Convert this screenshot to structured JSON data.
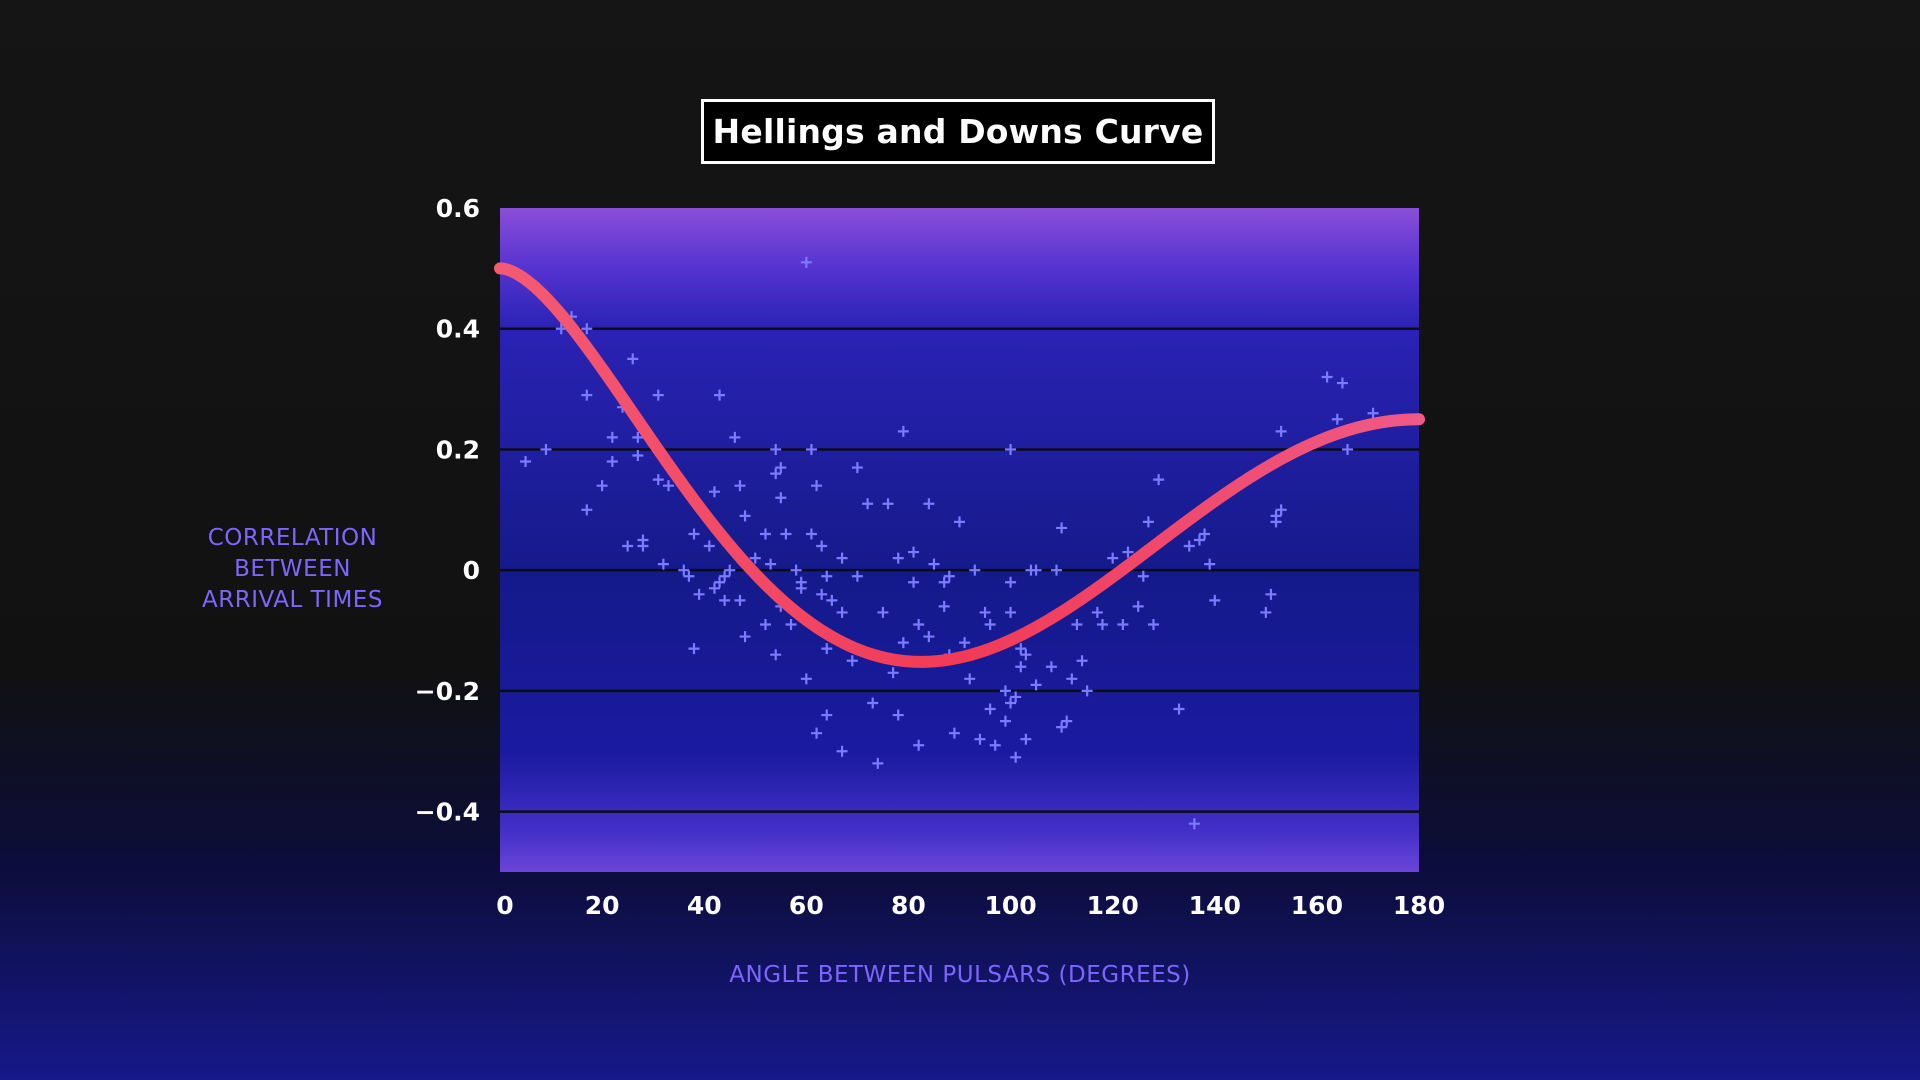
{
  "chart_data": {
    "type": "scatter",
    "title": "Hellings and Downs Curve",
    "xlabel": "ANGLE BETWEEN PULSARS (DEGREES)",
    "ylabel_lines": [
      "CORRELATION",
      "BETWEEN",
      "ARRIVAL TIMES"
    ],
    "xlim": [
      0,
      180
    ],
    "ylim": [
      -0.5,
      0.6
    ],
    "x_ticks": [
      0,
      20,
      40,
      60,
      80,
      100,
      120,
      140,
      160,
      180
    ],
    "x_tick_labels": [
      "0",
      "20",
      "40",
      "60",
      "80",
      "100",
      "120",
      "140",
      "160",
      "180"
    ],
    "y_ticks": [
      0.6,
      0.4,
      0.2,
      0,
      -0.2,
      -0.4
    ],
    "y_tick_labels": [
      "0.6",
      "0.4",
      "0.2",
      "0",
      "−0.2",
      "−0.4"
    ],
    "grid": "horizontal",
    "curve": {
      "function": "hellings-downs",
      "color": "#f0435f"
    },
    "scatter_color": "#7b7bff",
    "points": [
      [
        5,
        0.18
      ],
      [
        9,
        0.2
      ],
      [
        12,
        0.4
      ],
      [
        14,
        0.42
      ],
      [
        17,
        0.4
      ],
      [
        17,
        0.29
      ],
      [
        17,
        0.1
      ],
      [
        20,
        0.14
      ],
      [
        22,
        0.18
      ],
      [
        22,
        0.22
      ],
      [
        24,
        0.27
      ],
      [
        25,
        0.04
      ],
      [
        26,
        0.35
      ],
      [
        27,
        0.22
      ],
      [
        27,
        0.19
      ],
      [
        28,
        0.05
      ],
      [
        28,
        0.04
      ],
      [
        31,
        0.29
      ],
      [
        31,
        0.15
      ],
      [
        32,
        0.01
      ],
      [
        33,
        0.14
      ],
      [
        36,
        0.0
      ],
      [
        37,
        -0.01
      ],
      [
        38,
        0.06
      ],
      [
        38,
        -0.13
      ],
      [
        39,
        -0.04
      ],
      [
        41,
        0.04
      ],
      [
        42,
        0.13
      ],
      [
        42,
        -0.03
      ],
      [
        43,
        0.29
      ],
      [
        43,
        -0.02
      ],
      [
        44,
        -0.01
      ],
      [
        44,
        -0.05
      ],
      [
        45,
        0.0
      ],
      [
        46,
        0.22
      ],
      [
        47,
        0.14
      ],
      [
        47,
        -0.05
      ],
      [
        48,
        0.09
      ],
      [
        48,
        -0.11
      ],
      [
        50,
        0.02
      ],
      [
        52,
        0.06
      ],
      [
        52,
        -0.09
      ],
      [
        53,
        0.01
      ],
      [
        54,
        0.2
      ],
      [
        54,
        0.16
      ],
      [
        54,
        -0.14
      ],
      [
        55,
        0.17
      ],
      [
        55,
        0.12
      ],
      [
        55,
        -0.06
      ],
      [
        56,
        0.06
      ],
      [
        57,
        -0.09
      ],
      [
        58,
        0.0
      ],
      [
        59,
        -0.02
      ],
      [
        59,
        -0.03
      ],
      [
        60,
        0.51
      ],
      [
        60,
        -0.18
      ],
      [
        61,
        0.2
      ],
      [
        61,
        0.06
      ],
      [
        62,
        0.14
      ],
      [
        62,
        -0.27
      ],
      [
        63,
        0.04
      ],
      [
        63,
        -0.04
      ],
      [
        64,
        -0.01
      ],
      [
        64,
        -0.13
      ],
      [
        64,
        -0.24
      ],
      [
        65,
        -0.05
      ],
      [
        67,
        0.02
      ],
      [
        67,
        -0.07
      ],
      [
        67,
        -0.3
      ],
      [
        69,
        -0.15
      ],
      [
        70,
        0.17
      ],
      [
        70,
        -0.01
      ],
      [
        72,
        0.11
      ],
      [
        73,
        -0.22
      ],
      [
        74,
        -0.32
      ],
      [
        75,
        -0.07
      ],
      [
        76,
        0.11
      ],
      [
        77,
        -0.17
      ],
      [
        78,
        0.02
      ],
      [
        78,
        -0.24
      ],
      [
        79,
        0.23
      ],
      [
        79,
        -0.12
      ],
      [
        81,
        0.03
      ],
      [
        81,
        -0.02
      ],
      [
        82,
        -0.09
      ],
      [
        82,
        -0.29
      ],
      [
        84,
        0.11
      ],
      [
        84,
        -0.11
      ],
      [
        85,
        0.01
      ],
      [
        86,
        -0.15
      ],
      [
        87,
        -0.06
      ],
      [
        87,
        -0.02
      ],
      [
        88,
        -0.01
      ],
      [
        88,
        -0.14
      ],
      [
        89,
        -0.27
      ],
      [
        90,
        0.08
      ],
      [
        91,
        -0.12
      ],
      [
        92,
        -0.18
      ],
      [
        93,
        0.0
      ],
      [
        94,
        -0.28
      ],
      [
        95,
        -0.07
      ],
      [
        96,
        -0.09
      ],
      [
        96,
        -0.23
      ],
      [
        97,
        -0.29
      ],
      [
        99,
        -0.2
      ],
      [
        99,
        -0.25
      ],
      [
        100,
        0.2
      ],
      [
        100,
        -0.02
      ],
      [
        100,
        -0.07
      ],
      [
        100,
        -0.22
      ],
      [
        101,
        -0.21
      ],
      [
        101,
        -0.31
      ],
      [
        102,
        -0.13
      ],
      [
        102,
        -0.16
      ],
      [
        103,
        -0.14
      ],
      [
        103,
        -0.28
      ],
      [
        104,
        0.0
      ],
      [
        105,
        -0.19
      ],
      [
        105,
        0.0
      ],
      [
        108,
        -0.16
      ],
      [
        109,
        0.0
      ],
      [
        110,
        0.07
      ],
      [
        110,
        -0.26
      ],
      [
        111,
        -0.25
      ],
      [
        112,
        -0.18
      ],
      [
        113,
        -0.09
      ],
      [
        114,
        -0.15
      ],
      [
        115,
        -0.2
      ],
      [
        117,
        -0.07
      ],
      [
        118,
        -0.09
      ],
      [
        120,
        0.02
      ],
      [
        122,
        -0.09
      ],
      [
        123,
        0.03
      ],
      [
        125,
        -0.06
      ],
      [
        126,
        -0.01
      ],
      [
        127,
        0.08
      ],
      [
        128,
        -0.09
      ],
      [
        129,
        0.15
      ],
      [
        133,
        -0.23
      ],
      [
        135,
        0.04
      ],
      [
        136,
        -0.42
      ],
      [
        137,
        0.05
      ],
      [
        138,
        0.06
      ],
      [
        139,
        0.01
      ],
      [
        140,
        -0.05
      ],
      [
        150,
        -0.07
      ],
      [
        151,
        -0.04
      ],
      [
        152,
        0.08
      ],
      [
        152,
        0.09
      ],
      [
        153,
        0.23
      ],
      [
        153,
        0.1
      ],
      [
        162,
        0.32
      ],
      [
        164,
        0.25
      ],
      [
        165,
        0.31
      ],
      [
        166,
        0.2
      ],
      [
        171,
        0.26
      ]
    ]
  }
}
